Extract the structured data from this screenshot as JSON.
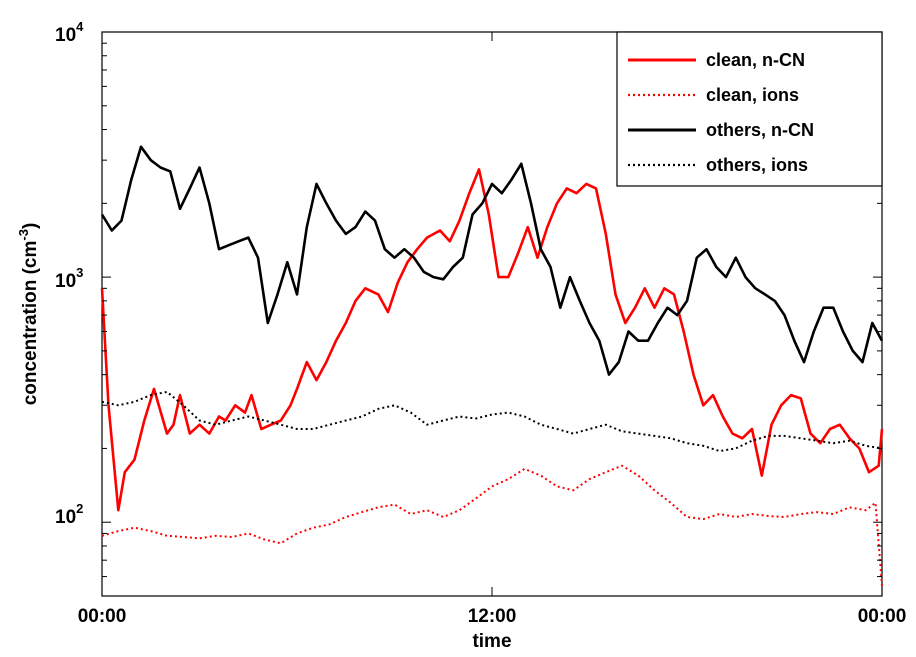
{
  "chart_data": {
    "type": "line",
    "xlabel": "time",
    "ylabel_main": "concentration (cm",
    "ylabel_sup": "-3",
    "ylabel_close": ")",
    "y_scale": "log",
    "ylim": [
      50,
      10000
    ],
    "xlim": [
      0,
      24
    ],
    "x_tick_values": [
      0,
      12,
      24
    ],
    "x_tick_labels": [
      "00:00",
      "12:00",
      "00:00"
    ],
    "y_tick_values": [
      100,
      1000,
      10000
    ],
    "y_tick_base": "10",
    "y_tick_exponents": [
      "2",
      "3",
      "4"
    ],
    "grid": false,
    "legend_position": "top-right",
    "series": [
      {
        "name": "clean, n-CN",
        "color": "#ff0000",
        "style": "solid",
        "x": [
          0.0,
          0.2,
          0.5,
          0.7,
          1.0,
          1.3,
          1.6,
          2.0,
          2.2,
          2.4,
          2.7,
          3.0,
          3.3,
          3.6,
          3.8,
          4.1,
          4.4,
          4.6,
          4.9,
          5.2,
          5.5,
          5.8,
          6.0,
          6.3,
          6.6,
          6.9,
          7.2,
          7.5,
          7.8,
          8.1,
          8.5,
          8.8,
          9.1,
          9.4,
          9.7,
          10.0,
          10.4,
          10.7,
          11.0,
          11.3,
          11.6,
          11.9,
          12.2,
          12.5,
          12.8,
          13.1,
          13.4,
          13.7,
          14.0,
          14.3,
          14.6,
          14.9,
          15.2,
          15.5,
          15.8,
          16.1,
          16.4,
          16.7,
          17.0,
          17.3,
          17.6,
          17.9,
          18.2,
          18.5,
          18.8,
          19.1,
          19.4,
          19.7,
          20.0,
          20.3,
          20.6,
          20.9,
          21.2,
          21.5,
          21.8,
          22.1,
          22.4,
          22.7,
          23.0,
          23.3,
          23.6,
          23.9,
          24.0
        ],
        "y": [
          900,
          300,
          112,
          160,
          180,
          260,
          350,
          230,
          250,
          330,
          230,
          250,
          230,
          270,
          260,
          300,
          280,
          330,
          240,
          250,
          260,
          300,
          350,
          450,
          380,
          450,
          550,
          650,
          800,
          900,
          850,
          720,
          950,
          1150,
          1300,
          1450,
          1550,
          1400,
          1700,
          2200,
          2750,
          1800,
          1000,
          1000,
          1250,
          1600,
          1200,
          1600,
          2000,
          2300,
          2200,
          2400,
          2300,
          1500,
          850,
          650,
          750,
          900,
          750,
          900,
          850,
          600,
          400,
          300,
          330,
          270,
          230,
          220,
          240,
          155,
          250,
          300,
          330,
          320,
          230,
          210,
          240,
          250,
          220,
          200,
          160,
          170,
          240
        ]
      },
      {
        "name": "clean, ions",
        "color": "#ff0000",
        "style": "dotted",
        "x": [
          0.0,
          0.5,
          1.0,
          1.5,
          2.0,
          2.5,
          3.0,
          3.5,
          4.0,
          4.5,
          5.0,
          5.5,
          6.0,
          6.5,
          7.0,
          7.5,
          8.0,
          8.5,
          9.0,
          9.5,
          10.0,
          10.5,
          11.0,
          11.5,
          12.0,
          12.5,
          13.0,
          13.5,
          14.0,
          14.5,
          15.0,
          15.5,
          16.0,
          16.5,
          17.0,
          17.5,
          18.0,
          18.5,
          19.0,
          19.5,
          20.0,
          20.5,
          21.0,
          21.5,
          22.0,
          22.5,
          23.0,
          23.5,
          23.8,
          24.0
        ],
        "y": [
          88,
          92,
          95,
          92,
          88,
          87,
          86,
          88,
          87,
          90,
          85,
          82,
          90,
          95,
          98,
          105,
          110,
          115,
          118,
          108,
          112,
          105,
          112,
          125,
          140,
          150,
          165,
          155,
          140,
          135,
          150,
          160,
          170,
          155,
          135,
          120,
          105,
          103,
          108,
          105,
          108,
          106,
          105,
          108,
          110,
          108,
          115,
          112,
          120,
          55
        ]
      },
      {
        "name": "others, n-CN",
        "color": "#000000",
        "style": "solid",
        "x": [
          0.0,
          0.3,
          0.6,
          0.9,
          1.2,
          1.5,
          1.8,
          2.1,
          2.4,
          2.7,
          3.0,
          3.3,
          3.6,
          3.9,
          4.2,
          4.5,
          4.8,
          5.1,
          5.4,
          5.7,
          6.0,
          6.3,
          6.6,
          6.9,
          7.2,
          7.5,
          7.8,
          8.1,
          8.4,
          8.7,
          9.0,
          9.3,
          9.6,
          9.9,
          10.2,
          10.5,
          10.8,
          11.1,
          11.4,
          11.7,
          12.0,
          12.3,
          12.6,
          12.9,
          13.2,
          13.5,
          13.8,
          14.1,
          14.4,
          14.7,
          15.0,
          15.3,
          15.6,
          15.9,
          16.2,
          16.5,
          16.8,
          17.1,
          17.4,
          17.7,
          18.0,
          18.3,
          18.6,
          18.9,
          19.2,
          19.5,
          19.8,
          20.1,
          20.4,
          20.7,
          21.0,
          21.3,
          21.6,
          21.9,
          22.2,
          22.5,
          22.8,
          23.1,
          23.4,
          23.7,
          24.0
        ],
        "y": [
          1800,
          1550,
          1700,
          2500,
          3400,
          3000,
          2800,
          2700,
          1900,
          2300,
          2800,
          2000,
          1300,
          1350,
          1400,
          1450,
          1200,
          650,
          850,
          1150,
          850,
          1600,
          2400,
          2000,
          1700,
          1500,
          1600,
          1850,
          1700,
          1300,
          1200,
          1300,
          1200,
          1050,
          1000,
          980,
          1100,
          1200,
          1800,
          2000,
          2400,
          2200,
          2500,
          2900,
          2000,
          1300,
          1100,
          750,
          1000,
          800,
          650,
          550,
          400,
          450,
          600,
          550,
          550,
          650,
          750,
          700,
          800,
          1200,
          1300,
          1100,
          1000,
          1200,
          1000,
          900,
          850,
          800,
          700,
          550,
          450,
          600,
          750,
          750,
          600,
          500,
          450,
          650,
          550
        ]
      },
      {
        "name": "others, ions",
        "color": "#000000",
        "style": "dotted",
        "x": [
          0.0,
          0.5,
          1.0,
          1.5,
          2.0,
          2.5,
          3.0,
          3.5,
          4.0,
          4.5,
          5.0,
          5.5,
          6.0,
          6.5,
          7.0,
          7.5,
          8.0,
          8.5,
          9.0,
          9.5,
          10.0,
          10.5,
          11.0,
          11.5,
          12.0,
          12.5,
          13.0,
          13.5,
          14.0,
          14.5,
          15.0,
          15.5,
          16.0,
          16.5,
          17.0,
          17.5,
          18.0,
          18.5,
          19.0,
          19.5,
          20.0,
          20.5,
          21.0,
          21.5,
          22.0,
          22.5,
          23.0,
          23.5,
          24.0
        ],
        "y": [
          310,
          300,
          310,
          330,
          340,
          300,
          260,
          250,
          260,
          270,
          260,
          250,
          240,
          240,
          250,
          260,
          270,
          290,
          300,
          280,
          250,
          260,
          270,
          265,
          275,
          280,
          270,
          250,
          240,
          230,
          240,
          250,
          235,
          230,
          225,
          220,
          210,
          205,
          195,
          200,
          215,
          225,
          225,
          220,
          215,
          210,
          215,
          205,
          200
        ]
      }
    ]
  }
}
